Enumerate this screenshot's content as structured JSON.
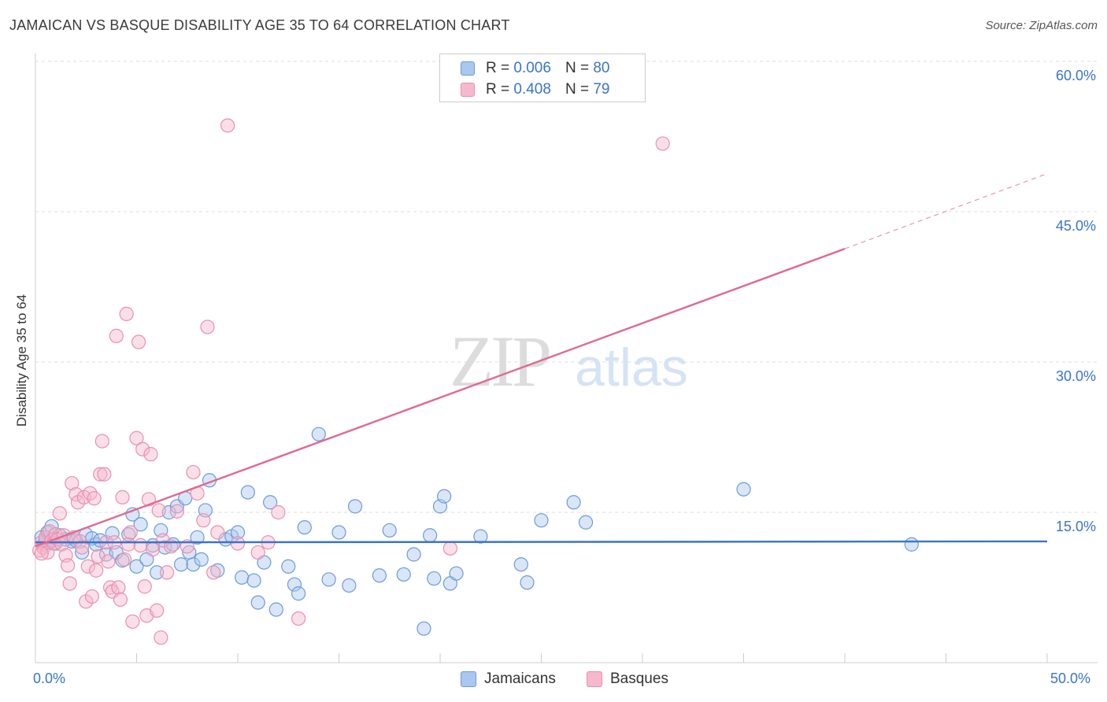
{
  "title": "JAMAICAN VS BASQUE DISABILITY AGE 35 TO 64 CORRELATION CHART",
  "source": "Source: ZipAtlas.com",
  "watermark": {
    "zip": "ZIP",
    "atlas": "atlas"
  },
  "legend": {
    "rows": [
      {
        "r_label": "R =",
        "r_value": "0.006",
        "n_label": "N =",
        "n_value": "80"
      },
      {
        "r_label": "R =",
        "r_value": "0.408",
        "n_label": "N =",
        "n_value": "79"
      }
    ]
  },
  "colors": {
    "jamaicans_fill": "#aac7ef",
    "jamaicans_stroke": "#6d9bd8",
    "jamaicans_line": "#3a74c9",
    "basques_fill": "#f6b8cc",
    "basques_stroke": "#e890ad",
    "basques_line": "#e0698f",
    "tick_text": "#3a74c9"
  },
  "chart_data": {
    "type": "scatter",
    "title": "JAMAICAN VS BASQUE DISABILITY AGE 35 TO 64 CORRELATION CHART",
    "xlabel": "",
    "ylabel": "Disability Age 35 to 64",
    "xlim": [
      0,
      50
    ],
    "ylim": [
      0,
      60
    ],
    "x_tick_labels": [
      "0.0%",
      "50.0%"
    ],
    "y_ticks": [
      15,
      30,
      45,
      60
    ],
    "y_tick_labels": [
      "15.0%",
      "30.0%",
      "45.0%",
      "60.0%"
    ],
    "grid": true,
    "legend_position": "top-center",
    "series": [
      {
        "name": "Jamaicans",
        "trend": {
          "x0": 0,
          "y0": 12.0,
          "x1": 50,
          "y1": 12.1
        },
        "points": [
          [
            0.3,
            12.5
          ],
          [
            0.4,
            11.8
          ],
          [
            0.5,
            12.2
          ],
          [
            0.6,
            13.0
          ],
          [
            0.7,
            12.0
          ],
          [
            0.8,
            13.6
          ],
          [
            1.0,
            12.4
          ],
          [
            1.2,
            12.7
          ],
          [
            1.5,
            12.3
          ],
          [
            1.8,
            12.1
          ],
          [
            2.0,
            12.2
          ],
          [
            2.3,
            11.0
          ],
          [
            2.5,
            12.8
          ],
          [
            2.8,
            12.4
          ],
          [
            3.0,
            11.8
          ],
          [
            3.2,
            12.2
          ],
          [
            3.5,
            10.8
          ],
          [
            3.8,
            12.9
          ],
          [
            4.0,
            11.0
          ],
          [
            4.3,
            10.2
          ],
          [
            4.6,
            12.8
          ],
          [
            4.8,
            14.8
          ],
          [
            5.0,
            9.6
          ],
          [
            5.2,
            13.8
          ],
          [
            5.5,
            10.3
          ],
          [
            5.8,
            11.7
          ],
          [
            6.0,
            9.0
          ],
          [
            6.2,
            13.2
          ],
          [
            6.4,
            11.5
          ],
          [
            6.6,
            15.0
          ],
          [
            6.8,
            11.8
          ],
          [
            7.0,
            15.6
          ],
          [
            7.2,
            9.8
          ],
          [
            7.4,
            16.4
          ],
          [
            7.6,
            11.0
          ],
          [
            7.8,
            9.8
          ],
          [
            8.0,
            12.5
          ],
          [
            8.2,
            10.3
          ],
          [
            8.4,
            15.2
          ],
          [
            8.6,
            18.2
          ],
          [
            9.0,
            9.2
          ],
          [
            9.4,
            12.3
          ],
          [
            9.7,
            12.6
          ],
          [
            10.0,
            13.0
          ],
          [
            10.2,
            8.5
          ],
          [
            10.5,
            17.0
          ],
          [
            10.8,
            8.2
          ],
          [
            11.0,
            6.0
          ],
          [
            11.3,
            10.0
          ],
          [
            11.6,
            16.0
          ],
          [
            11.9,
            5.3
          ],
          [
            12.5,
            9.6
          ],
          [
            12.8,
            7.8
          ],
          [
            13.0,
            6.9
          ],
          [
            13.3,
            13.5
          ],
          [
            14.0,
            22.8
          ],
          [
            14.5,
            8.3
          ],
          [
            15.0,
            13.0
          ],
          [
            15.5,
            7.7
          ],
          [
            15.8,
            15.6
          ],
          [
            17.0,
            8.7
          ],
          [
            17.5,
            13.2
          ],
          [
            18.2,
            8.8
          ],
          [
            18.7,
            10.8
          ],
          [
            19.2,
            3.4
          ],
          [
            19.5,
            12.7
          ],
          [
            19.7,
            8.4
          ],
          [
            20.0,
            15.6
          ],
          [
            20.2,
            16.6
          ],
          [
            20.5,
            7.9
          ],
          [
            20.8,
            8.9
          ],
          [
            22.0,
            12.6
          ],
          [
            24.0,
            9.8
          ],
          [
            24.3,
            8.0
          ],
          [
            25.0,
            14.2
          ],
          [
            26.6,
            16.0
          ],
          [
            27.2,
            14.0
          ],
          [
            35.0,
            17.3
          ],
          [
            43.3,
            11.8
          ],
          [
            1.0,
            11.9
          ]
        ]
      },
      {
        "name": "Basques",
        "trend": {
          "x0": 0,
          "y0": 11.6,
          "x1": 40,
          "y1": 41.3,
          "dash_to_x": 50,
          "dash_to_y": 48.8
        },
        "points": [
          [
            0.2,
            11.2
          ],
          [
            0.3,
            12.0
          ],
          [
            0.4,
            11.5
          ],
          [
            0.5,
            12.5
          ],
          [
            0.6,
            11.0
          ],
          [
            0.7,
            13.1
          ],
          [
            0.8,
            12.2
          ],
          [
            0.9,
            11.9
          ],
          [
            1.0,
            12.8
          ],
          [
            1.1,
            12.3
          ],
          [
            1.2,
            14.9
          ],
          [
            1.3,
            11.8
          ],
          [
            1.4,
            12.7
          ],
          [
            1.5,
            10.7
          ],
          [
            1.6,
            9.7
          ],
          [
            1.7,
            7.9
          ],
          [
            1.8,
            17.9
          ],
          [
            1.9,
            12.5
          ],
          [
            2.0,
            16.8
          ],
          [
            2.1,
            16.0
          ],
          [
            2.2,
            12.1
          ],
          [
            2.3,
            11.5
          ],
          [
            2.4,
            16.5
          ],
          [
            2.5,
            6.1
          ],
          [
            2.6,
            9.6
          ],
          [
            2.7,
            16.9
          ],
          [
            2.8,
            6.6
          ],
          [
            2.9,
            16.4
          ],
          [
            3.0,
            9.2
          ],
          [
            3.1,
            10.6
          ],
          [
            3.2,
            18.8
          ],
          [
            3.3,
            22.1
          ],
          [
            3.4,
            18.8
          ],
          [
            3.5,
            12.0
          ],
          [
            3.6,
            10.1
          ],
          [
            3.7,
            7.5
          ],
          [
            3.8,
            7.1
          ],
          [
            3.9,
            12.0
          ],
          [
            4.0,
            32.6
          ],
          [
            4.1,
            7.5
          ],
          [
            4.2,
            6.3
          ],
          [
            4.3,
            16.5
          ],
          [
            4.4,
            10.3
          ],
          [
            4.5,
            34.8
          ],
          [
            4.6,
            11.8
          ],
          [
            4.7,
            13.0
          ],
          [
            4.8,
            4.1
          ],
          [
            5.0,
            22.4
          ],
          [
            5.1,
            32.0
          ],
          [
            5.2,
            11.7
          ],
          [
            5.3,
            21.3
          ],
          [
            5.4,
            7.6
          ],
          [
            5.5,
            4.7
          ],
          [
            5.6,
            16.3
          ],
          [
            5.7,
            20.8
          ],
          [
            5.8,
            11.3
          ],
          [
            6.0,
            5.2
          ],
          [
            6.1,
            15.2
          ],
          [
            6.2,
            2.5
          ],
          [
            6.3,
            12.2
          ],
          [
            6.5,
            9.0
          ],
          [
            6.7,
            11.6
          ],
          [
            7.0,
            15.1
          ],
          [
            7.5,
            11.6
          ],
          [
            7.8,
            19.0
          ],
          [
            8.0,
            16.9
          ],
          [
            8.3,
            14.2
          ],
          [
            8.5,
            33.5
          ],
          [
            8.8,
            9.0
          ],
          [
            9.0,
            13.0
          ],
          [
            9.5,
            53.6
          ],
          [
            10.0,
            11.9
          ],
          [
            11.0,
            11.0
          ],
          [
            11.5,
            12.0
          ],
          [
            12.0,
            15.0
          ],
          [
            13.0,
            4.4
          ],
          [
            20.5,
            11.4
          ],
          [
            31.0,
            51.8
          ],
          [
            0.3,
            10.9
          ]
        ]
      }
    ]
  },
  "bottom_legend": {
    "jamaicans": "Jamaicans",
    "basques": "Basques"
  }
}
